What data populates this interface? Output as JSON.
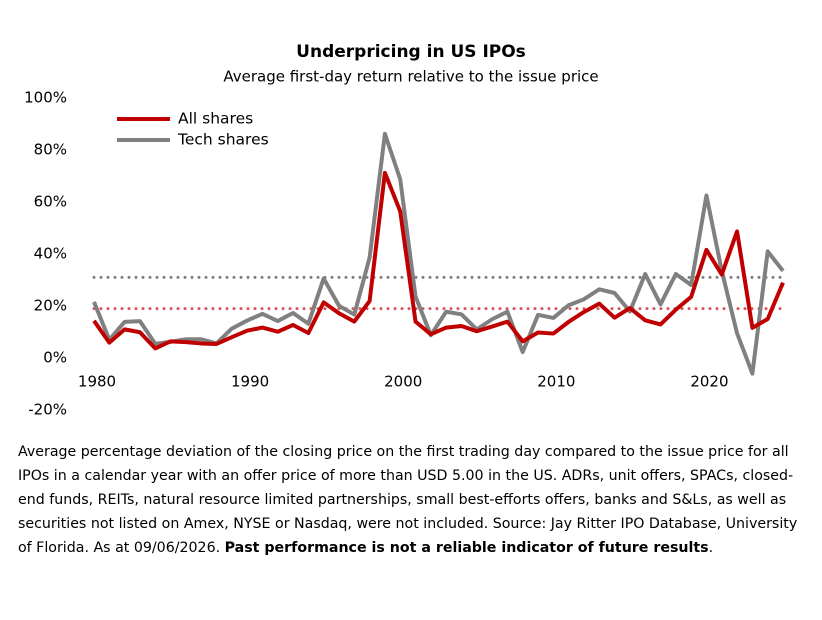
{
  "chart_data": {
    "type": "line",
    "title": "Underpricing in US IPOs",
    "subtitle": "Average first-day return relative to the issue price",
    "x": [
      1980,
      1981,
      1982,
      1983,
      1984,
      1985,
      1986,
      1987,
      1988,
      1989,
      1990,
      1991,
      1992,
      1993,
      1994,
      1995,
      1996,
      1997,
      1998,
      1999,
      2000,
      2001,
      2002,
      2003,
      2004,
      2005,
      2006,
      2007,
      2008,
      2009,
      2010,
      2011,
      2012,
      2013,
      2014,
      2015,
      2016,
      2017,
      2018,
      2019,
      2020,
      2021,
      2022,
      2023,
      2024,
      2025
    ],
    "series": [
      {
        "name": "All shares",
        "color": "#c00000",
        "values": [
          14.3,
          5.9,
          11.0,
          9.9,
          3.7,
          6.4,
          6.1,
          5.6,
          5.4,
          8.0,
          10.5,
          11.7,
          10.1,
          12.7,
          9.6,
          21.4,
          17.2,
          14.0,
          21.9,
          71.2,
          56.4,
          14.0,
          9.1,
          11.7,
          12.3,
          10.3,
          12.1,
          14.0,
          6.4,
          9.8,
          9.4,
          13.9,
          17.7,
          20.9,
          15.5,
          19.2,
          14.5,
          12.9,
          18.6,
          23.5,
          41.6,
          32.1,
          48.7,
          11.6,
          15.0,
          29.0
        ]
      },
      {
        "name": "Tech shares",
        "color": "#808080",
        "values": [
          21.6,
          7.0,
          13.9,
          14.2,
          5.5,
          6.2,
          7.2,
          7.2,
          5.6,
          11.3,
          14.4,
          17.0,
          14.2,
          17.3,
          13.2,
          30.6,
          20.1,
          16.7,
          38.6,
          86.2,
          68.7,
          23.6,
          8.8,
          17.8,
          16.8,
          11.0,
          14.9,
          17.8,
          2.3,
          16.6,
          15.4,
          20.3,
          22.6,
          26.4,
          25.0,
          17.9,
          32.3,
          20.6,
          32.3,
          28.1,
          62.5,
          33.5,
          9.5,
          -6.0,
          41.0,
          33.5
        ]
      }
    ],
    "averages": [
      {
        "value": 31,
        "color": "#7f7f7f"
      },
      {
        "value": 19,
        "color": "#d9535a"
      }
    ],
    "xlim": [
      1980,
      2025
    ],
    "xticks": [
      1980,
      1990,
      2000,
      2010,
      2020
    ],
    "ylim": [
      -20,
      100
    ],
    "yticks": [
      {
        "value": -20,
        "label": "-20%"
      },
      {
        "value": 0,
        "label": "0%"
      },
      {
        "value": 20,
        "label": "20%"
      },
      {
        "value": 40,
        "label": "40%"
      },
      {
        "value": 60,
        "label": "60%"
      },
      {
        "value": 80,
        "label": "80%"
      },
      {
        "value": 100,
        "label": "100%"
      }
    ],
    "grid": false,
    "legend": "top-left",
    "note": [
      "Average percentage deviation of the closing price on the first trading day compared to the issue price for all IPOs in a calendar year with an offer price of more than USD 5.00 in the US. ADRs, unit offers, SPACs, closed-end funds, REITs, natural resource limited partnerships, small best-efforts offers, banks and S&Ls, as well as securities not listed on Amex, NYSE or Nasdaq, were not included. Source: Jay Ritter IPO Database, University of Florida. As at 09/06/2026. ",
      "Past performance is not a reliable indicator of future results",
      "."
    ]
  }
}
